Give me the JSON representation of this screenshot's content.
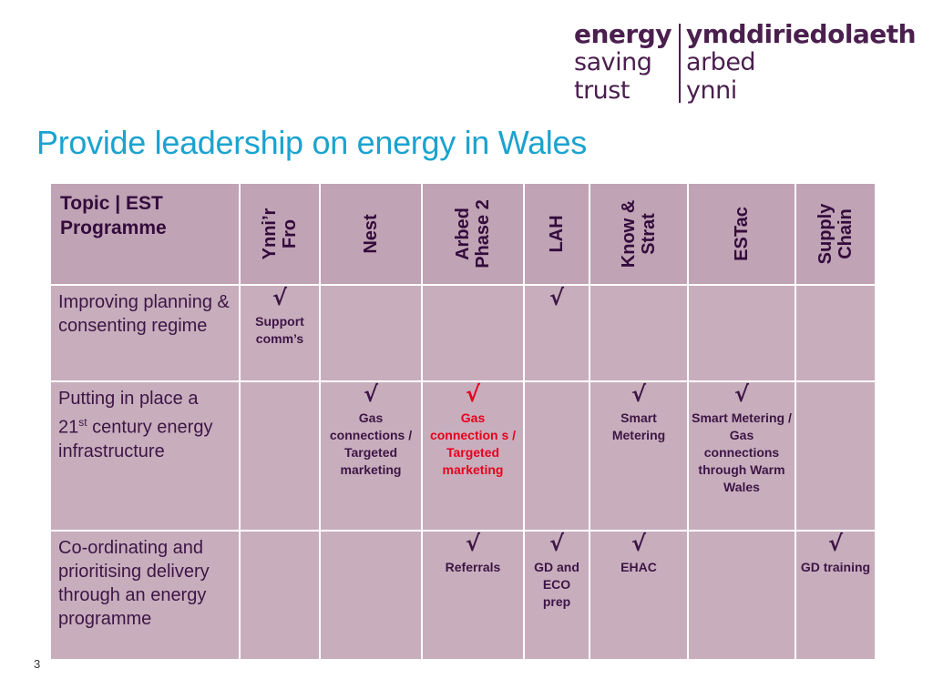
{
  "logo": {
    "left": [
      "energy",
      "saving",
      "trust"
    ],
    "right": [
      "ymddiriedolaeth",
      "arbed",
      "ynni"
    ]
  },
  "title": "Provide leadership on energy in Wales",
  "page_number": "3",
  "table": {
    "corner": "Topic | EST Programme",
    "columns": [
      "Ynni’r\nFro",
      "Nest",
      "Arbed\nPhase 2",
      "LAH",
      "Know &\nStrat",
      "ESTac",
      "Supply\nChain"
    ],
    "rows": [
      {
        "label": "Improving planning & consenting regime",
        "cells": [
          {
            "check": "√",
            "note": "Support comm’s"
          },
          {
            "check": "",
            "note": ""
          },
          {
            "check": "",
            "note": ""
          },
          {
            "check": "√",
            "note": ""
          },
          {
            "check": "",
            "note": ""
          },
          {
            "check": "",
            "note": ""
          },
          {
            "check": "",
            "note": ""
          }
        ]
      },
      {
        "label_pre": "Putting in place a 21",
        "label_sup": "st",
        "label_post": " century energy infrastructure",
        "cells": [
          {
            "check": "",
            "note": ""
          },
          {
            "check": "√",
            "note": "Gas connections / Targeted marketing"
          },
          {
            "check": "√",
            "note": "Gas connection s / Targeted marketing",
            "highlight": "#e8001c"
          },
          {
            "check": "",
            "note": ""
          },
          {
            "check": "√",
            "note": "Smart Metering"
          },
          {
            "check": "√",
            "note": "Smart Metering / Gas connections through Warm Wales"
          },
          {
            "check": "",
            "note": ""
          }
        ]
      },
      {
        "label": "Co-ordinating and prioritising delivery through an energy programme",
        "cells": [
          {
            "check": "",
            "note": ""
          },
          {
            "check": "",
            "note": ""
          },
          {
            "check": "√",
            "note": "Referrals"
          },
          {
            "check": "√",
            "note": "GD and ECO prep"
          },
          {
            "check": "√",
            "note": "EHAC"
          },
          {
            "check": "",
            "note": ""
          },
          {
            "check": "√",
            "note": "GD training"
          }
        ]
      }
    ]
  }
}
